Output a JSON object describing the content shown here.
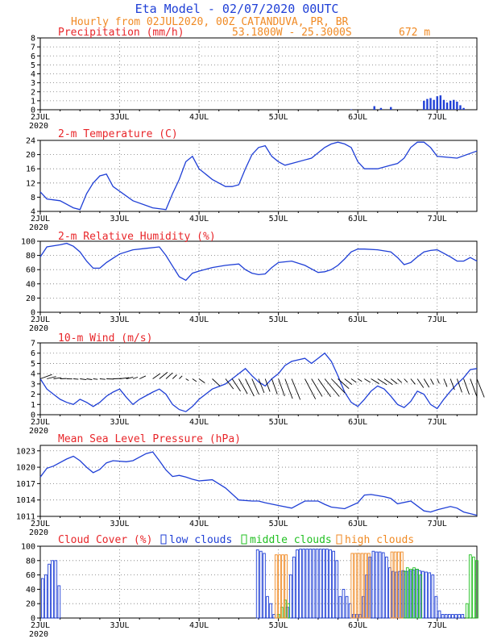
{
  "header": {
    "title": "Eta Model - 02/07/2020 00UTC",
    "subtitle": "Hourly from 02JUL2020, 00Z  CATANDUVA, PR, BR",
    "coords": "53.1800W - 25.3000S",
    "elevation": "672  m"
  },
  "colors": {
    "title": "#1f3fd6",
    "orange": "#f08a24",
    "red": "#e8262a",
    "blue": "#1f3fd6",
    "green": "#22c022",
    "black": "#000000"
  },
  "x_axis": {
    "day_labels": [
      "2JUL",
      "3JUL",
      "4JUL",
      "5JUL",
      "6JUL",
      "7JUL"
    ],
    "year_label": "2020",
    "range_hours": [
      0,
      132
    ]
  },
  "chart_data": [
    {
      "type": "bar",
      "title": "Precipitation (mm/h)",
      "ylim": [
        0,
        8
      ],
      "yticks": [
        "0",
        "1",
        "2",
        "3",
        "4",
        "5",
        "6",
        "7",
        "8"
      ],
      "x": [
        94,
        101,
        103,
        106,
        116,
        117,
        118,
        119,
        120,
        121,
        122,
        123,
        124,
        125,
        126,
        127,
        128
      ],
      "values": [
        0.05,
        0.4,
        0.2,
        0.3,
        1.0,
        1.2,
        1.3,
        1.1,
        1.5,
        1.6,
        1.1,
        0.8,
        1.0,
        1.1,
        0.9,
        0.5,
        0.2
      ]
    },
    {
      "type": "line",
      "title": "2-m Temperature (C)",
      "ylim": [
        4,
        24
      ],
      "yticks": [
        "4",
        "8",
        "12",
        "16",
        "20",
        "24"
      ],
      "x": [
        0,
        2,
        6,
        10,
        12,
        14,
        16,
        18,
        20,
        22,
        28,
        34,
        38,
        40,
        42,
        44,
        46,
        48,
        52,
        56,
        58,
        60,
        62,
        64,
        66,
        68,
        70,
        72,
        74,
        76,
        82,
        86,
        88,
        90,
        92,
        94,
        96,
        98,
        102,
        106,
        108,
        110,
        112,
        114,
        116,
        118,
        120,
        126,
        132
      ],
      "values": [
        9.5,
        7.5,
        7,
        5,
        4.5,
        9,
        12,
        14,
        14.5,
        11,
        7,
        5,
        4.5,
        9,
        13,
        18,
        19.5,
        16,
        13,
        11,
        11,
        11.5,
        16,
        20,
        22,
        22.5,
        19.5,
        18,
        17,
        17.5,
        19,
        22,
        23,
        23.5,
        23,
        22,
        18,
        16,
        16,
        17,
        17.5,
        19,
        22,
        23.5,
        23.5,
        22,
        19.5,
        19,
        21
      ]
    },
    {
      "type": "line",
      "title": "2-m Relative Humidity (%)",
      "ylim": [
        0,
        100
      ],
      "yticks": [
        "0",
        "20",
        "40",
        "60",
        "80",
        "100"
      ],
      "x": [
        0,
        2,
        6,
        8,
        10,
        12,
        14,
        16,
        18,
        20,
        22,
        24,
        28,
        32,
        36,
        38,
        40,
        42,
        44,
        46,
        48,
        52,
        56,
        60,
        62,
        64,
        66,
        68,
        70,
        72,
        76,
        80,
        84,
        86,
        88,
        90,
        92,
        94,
        96,
        98,
        102,
        106,
        108,
        110,
        112,
        114,
        116,
        118,
        120,
        124,
        126,
        128,
        130,
        132
      ],
      "values": [
        78,
        92,
        95,
        97,
        93,
        85,
        72,
        62,
        62,
        70,
        76,
        82,
        88,
        90,
        92,
        80,
        65,
        50,
        45,
        55,
        58,
        63,
        66,
        68,
        60,
        55,
        53,
        54,
        63,
        70,
        72,
        66,
        56,
        57,
        60,
        66,
        75,
        85,
        89,
        89,
        88,
        85,
        77,
        67,
        70,
        78,
        85,
        87,
        88,
        78,
        72,
        72,
        77,
        72
      ]
    },
    {
      "type": "line",
      "title": "10-m Wind (m/s)",
      "ylim": [
        0,
        7
      ],
      "yticks": [
        "0",
        "1",
        "2",
        "3",
        "4",
        "5",
        "6",
        "7"
      ],
      "x": [
        0,
        2,
        4,
        6,
        8,
        10,
        12,
        14,
        16,
        18,
        20,
        22,
        24,
        26,
        28,
        30,
        34,
        36,
        38,
        40,
        42,
        44,
        46,
        48,
        52,
        56,
        58,
        60,
        62,
        64,
        66,
        68,
        70,
        72,
        74,
        76,
        80,
        82,
        84,
        86,
        88,
        90,
        92,
        94,
        96,
        98,
        100,
        102,
        104,
        106,
        108,
        110,
        112,
        114,
        116,
        118,
        120,
        122,
        124,
        126,
        128,
        130,
        132
      ],
      "values": [
        3.5,
        2.5,
        2.0,
        1.5,
        1.2,
        1.0,
        1.5,
        1.2,
        0.8,
        1.2,
        1.8,
        2.2,
        2.5,
        1.7,
        1.0,
        1.5,
        2.2,
        2.5,
        2.0,
        1.0,
        0.5,
        0.3,
        0.8,
        1.5,
        2.5,
        3.0,
        3.5,
        4.0,
        4.5,
        3.8,
        3.2,
        2.8,
        3.5,
        4.0,
        4.8,
        5.2,
        5.5,
        5.0,
        5.5,
        6.0,
        5.2,
        3.8,
        2.2,
        1.2,
        0.8,
        1.5,
        2.3,
        2.8,
        2.5,
        1.8,
        1.0,
        0.7,
        1.3,
        2.3,
        2.0,
        1.0,
        0.6,
        1.5,
        2.3,
        3.0,
        3.6,
        4.4,
        4.5
      ]
    },
    {
      "type": "line",
      "title": "Mean Sea Level Pressure (hPa)",
      "ylim": [
        1011,
        1024
      ],
      "yticks": [
        "1011",
        "1014",
        "1017",
        "1020",
        "1023"
      ],
      "x": [
        0,
        2,
        4,
        8,
        10,
        12,
        14,
        16,
        18,
        20,
        22,
        26,
        28,
        32,
        34,
        36,
        38,
        40,
        42,
        44,
        46,
        48,
        52,
        56,
        60,
        64,
        66,
        68,
        72,
        76,
        80,
        84,
        86,
        88,
        92,
        96,
        98,
        100,
        104,
        106,
        108,
        112,
        116,
        118,
        120,
        124,
        126,
        128,
        130,
        132
      ],
      "values": [
        1018.2,
        1019.8,
        1020.2,
        1021.5,
        1022,
        1021.2,
        1020,
        1019,
        1019.6,
        1020.8,
        1021.2,
        1021,
        1021.2,
        1022.5,
        1022.8,
        1021.2,
        1019.5,
        1018.3,
        1018.5,
        1018.2,
        1017.8,
        1017.5,
        1017.7,
        1016.2,
        1014,
        1013.8,
        1013.8,
        1013.5,
        1013,
        1012.5,
        1013.8,
        1013.8,
        1013.2,
        1012.7,
        1012.4,
        1013.5,
        1014.9,
        1015,
        1014.6,
        1014.3,
        1013.3,
        1013.8,
        1012,
        1011.8,
        1012.2,
        1012.8,
        1012.5,
        1011.8,
        1011.5,
        1011.2
      ]
    },
    {
      "type": "bar",
      "title": "Cloud Cover (%)",
      "ylim": [
        0,
        100
      ],
      "yticks": [
        "0",
        "20",
        "40",
        "60",
        "80",
        "100"
      ],
      "legend": [
        "low clouds",
        "middle clouds",
        "high clouds"
      ],
      "series": [
        {
          "name": "low clouds",
          "x": [
            1,
            2,
            3,
            4,
            5,
            6,
            66,
            67,
            68,
            69,
            70,
            71,
            75,
            76,
            77,
            78,
            79,
            80,
            81,
            82,
            83,
            84,
            85,
            86,
            87,
            88,
            89,
            90,
            91,
            92,
            93,
            94,
            95,
            96,
            97,
            98,
            99,
            100,
            101,
            102,
            103,
            104,
            105,
            106,
            107,
            108,
            109,
            110,
            111,
            112,
            113,
            114,
            115,
            116,
            117,
            118,
            119,
            120,
            121,
            122,
            123,
            124,
            125,
            126,
            127,
            128
          ],
          "values": [
            55,
            60,
            75,
            80,
            80,
            45,
            95,
            93,
            90,
            30,
            20,
            5,
            15,
            60,
            85,
            95,
            96,
            96,
            96,
            96,
            96,
            96,
            96,
            96,
            96,
            95,
            93,
            80,
            30,
            40,
            30,
            20,
            5,
            5,
            5,
            30,
            60,
            85,
            93,
            92,
            92,
            91,
            85,
            70,
            65,
            64,
            65,
            66,
            65,
            66,
            67,
            68,
            66,
            65,
            64,
            63,
            60,
            30,
            10,
            5,
            5,
            5,
            5,
            5,
            5,
            5
          ]
        },
        {
          "name": "middle clouds",
          "x": [
            72,
            73,
            74,
            75,
            110,
            111,
            112,
            113,
            114,
            115,
            129,
            130,
            131,
            132
          ],
          "values": [
            5,
            15,
            25,
            20,
            65,
            70,
            68,
            70,
            68,
            60,
            20,
            88,
            85,
            80
          ]
        },
        {
          "name": "high clouds",
          "x": [
            71,
            72,
            73,
            74,
            94,
            95,
            96,
            97,
            98,
            99,
            106,
            107,
            108,
            109
          ],
          "values": [
            88,
            88,
            88,
            88,
            90,
            90,
            90,
            90,
            90,
            90,
            92,
            92,
            92,
            92
          ]
        }
      ]
    }
  ]
}
